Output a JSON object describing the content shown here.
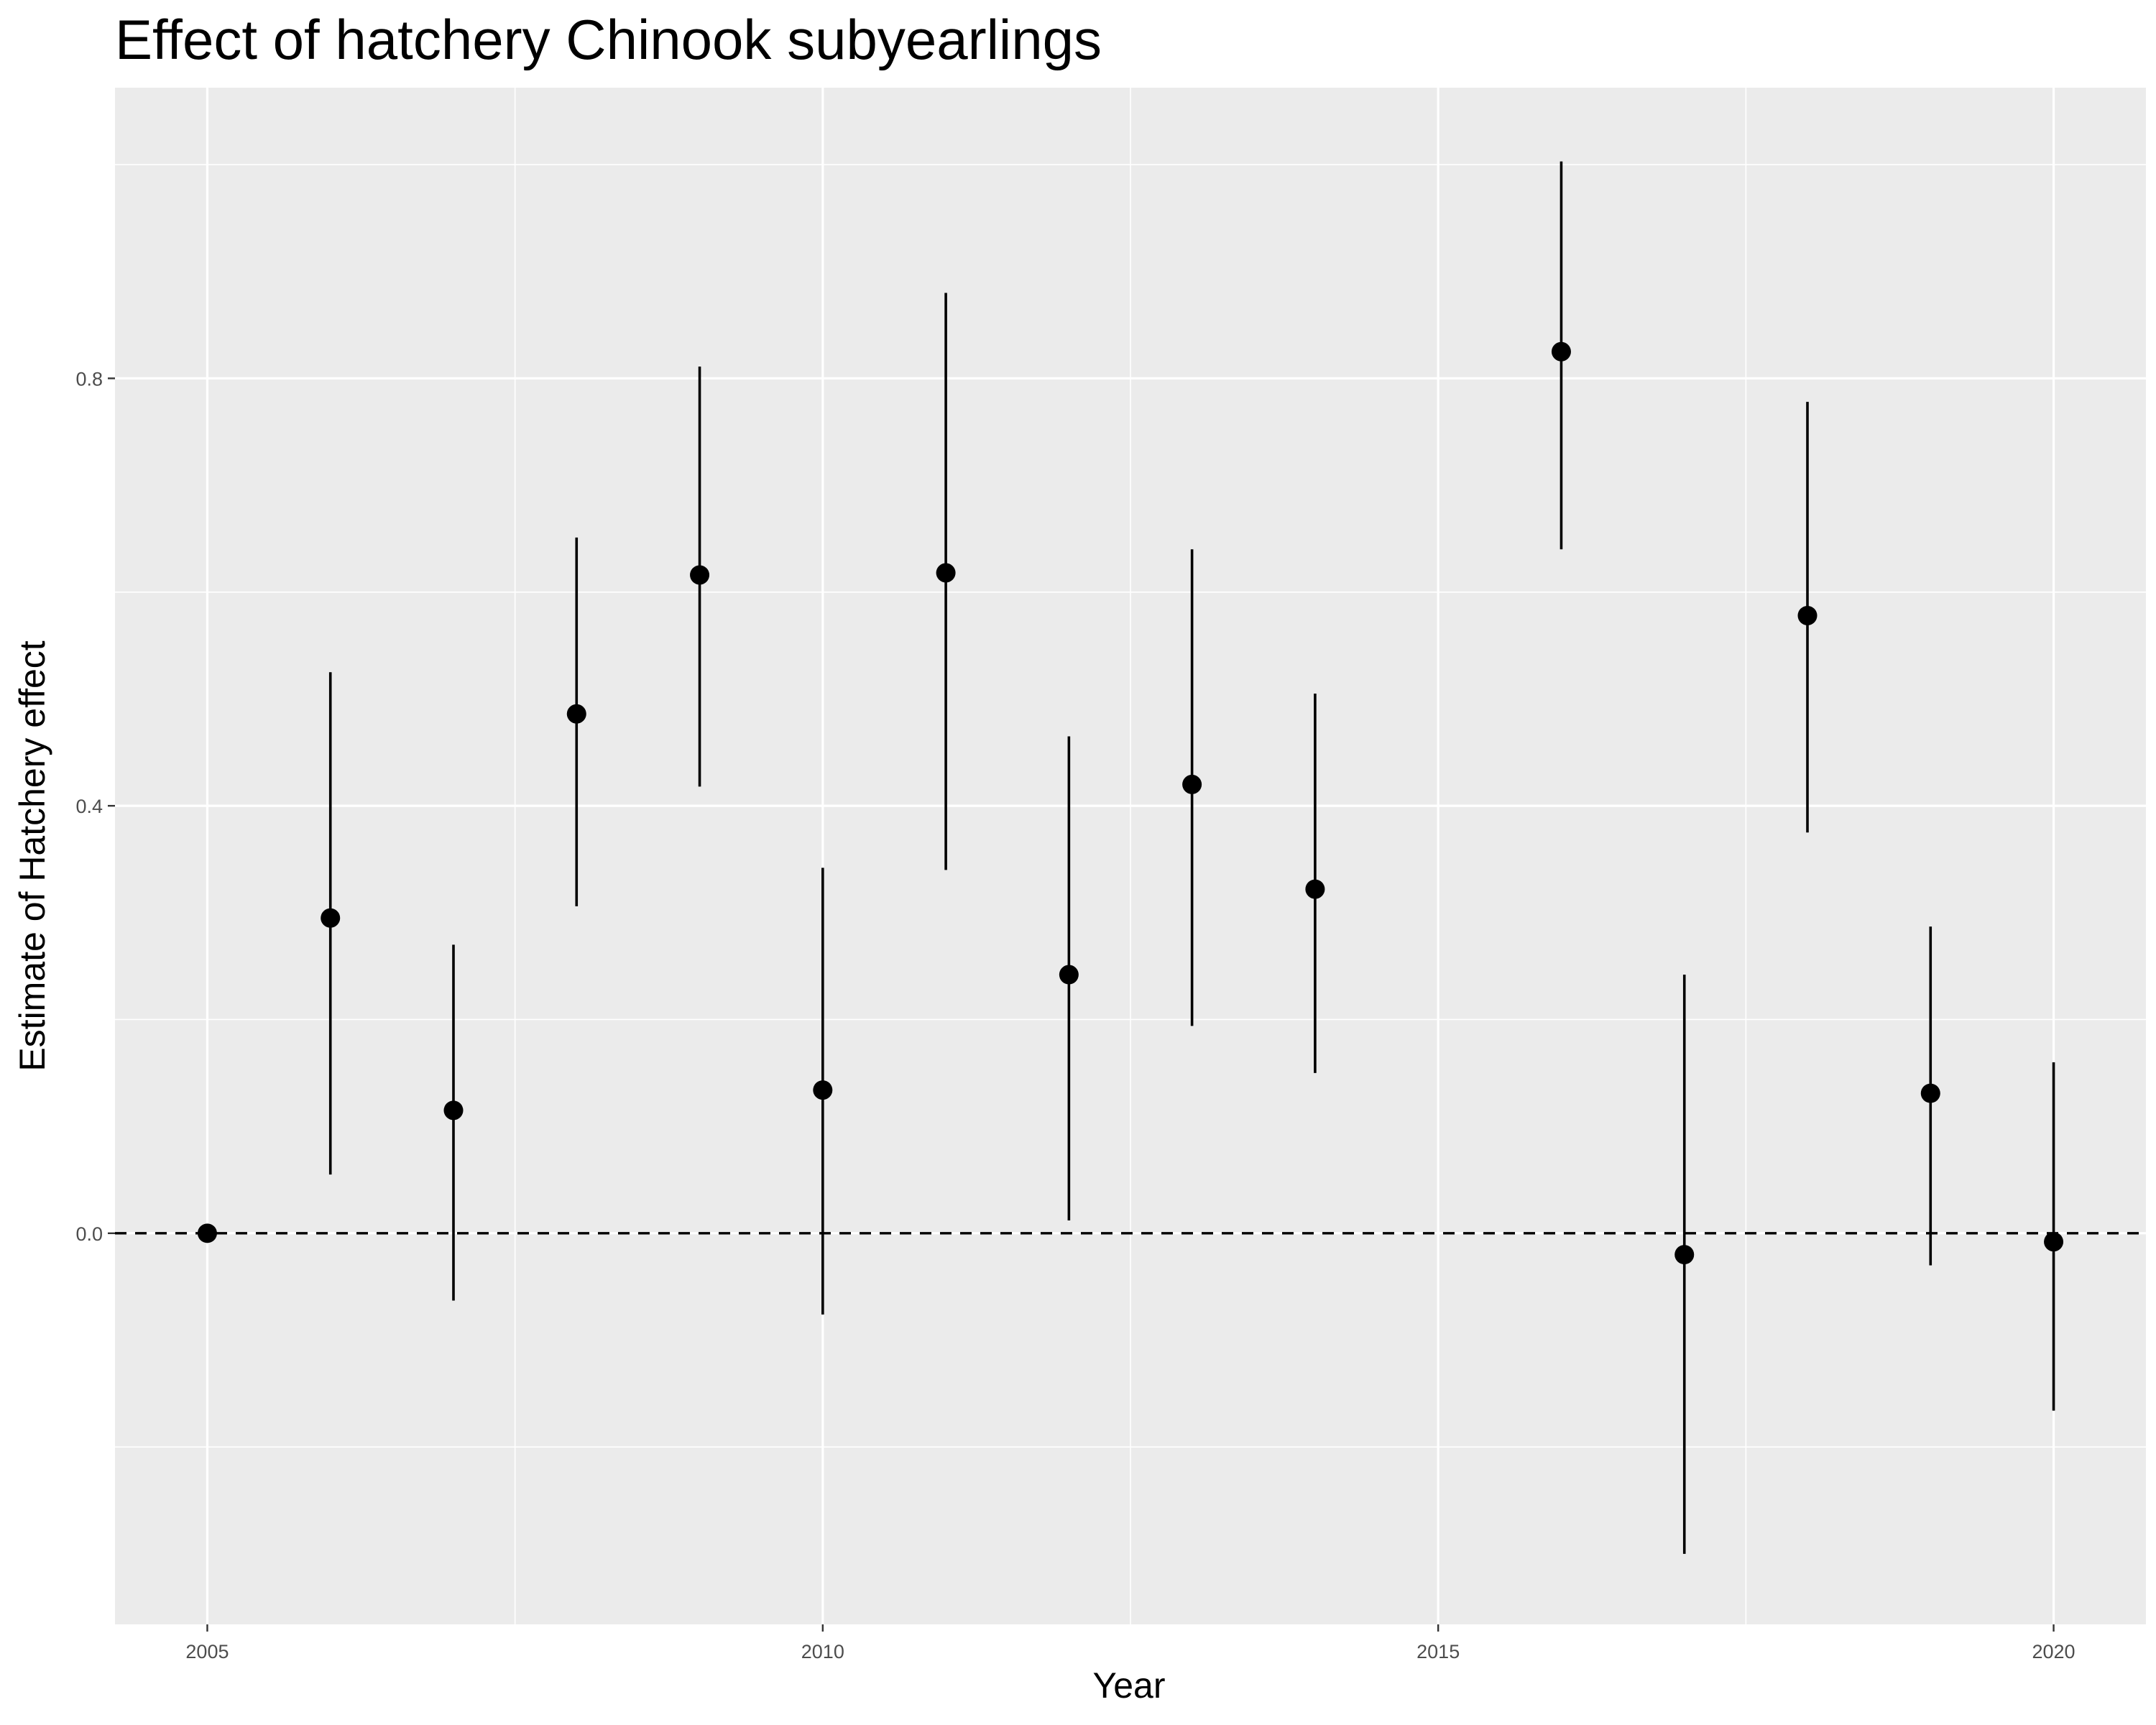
{
  "chart_data": {
    "type": "scatter",
    "title": "Effect of hatchery Chinook subyearlings",
    "xlabel": "Year",
    "ylabel": "Estimate of Hatchery effect",
    "xlim": [
      2004.25,
      2020.75
    ],
    "ylim": [
      -0.366,
      1.072
    ],
    "x_ticks": [
      2005,
      2010,
      2015,
      2020
    ],
    "x_tick_labels": [
      "2005",
      "2010",
      "2015",
      "2020"
    ],
    "y_ticks": [
      0.0,
      0.4,
      0.8
    ],
    "y_tick_labels": [
      "0.0",
      "0.4",
      "0.8"
    ],
    "x_minor_grid": [
      2007.5,
      2012.5,
      2017.5
    ],
    "y_minor_grid": [
      -0.2,
      0.2,
      0.6,
      1.0
    ],
    "grid": true,
    "panel_background": "#ebebeb",
    "grid_color": "#ffffff",
    "point_color": "#000000",
    "reference_line": {
      "y": 0,
      "style": "dashed"
    },
    "series": [
      {
        "points": [
          {
            "x": 2005,
            "y": 0.0,
            "lower": 0.0,
            "upper": 0.0
          },
          {
            "x": 2006,
            "y": 0.295,
            "lower": 0.055,
            "upper": 0.525
          },
          {
            "x": 2007,
            "y": 0.115,
            "lower": -0.063,
            "upper": 0.27
          },
          {
            "x": 2008,
            "y": 0.486,
            "lower": 0.306,
            "upper": 0.651
          },
          {
            "x": 2009,
            "y": 0.616,
            "lower": 0.418,
            "upper": 0.811
          },
          {
            "x": 2010,
            "y": 0.134,
            "lower": -0.076,
            "upper": 0.342
          },
          {
            "x": 2011,
            "y": 0.618,
            "lower": 0.34,
            "upper": 0.88
          },
          {
            "x": 2012,
            "y": 0.242,
            "lower": 0.012,
            "upper": 0.465
          },
          {
            "x": 2013,
            "y": 0.42,
            "lower": 0.194,
            "upper": 0.64
          },
          {
            "x": 2014,
            "y": 0.322,
            "lower": 0.15,
            "upper": 0.505
          },
          {
            "x": 2016,
            "y": 0.825,
            "lower": 0.64,
            "upper": 1.003
          },
          {
            "x": 2017,
            "y": -0.02,
            "lower": -0.3,
            "upper": 0.242
          },
          {
            "x": 2018,
            "y": 0.578,
            "lower": 0.375,
            "upper": 0.778
          },
          {
            "x": 2019,
            "y": 0.131,
            "lower": -0.03,
            "upper": 0.287
          },
          {
            "x": 2020,
            "y": -0.008,
            "lower": -0.166,
            "upper": 0.16
          }
        ]
      }
    ]
  }
}
